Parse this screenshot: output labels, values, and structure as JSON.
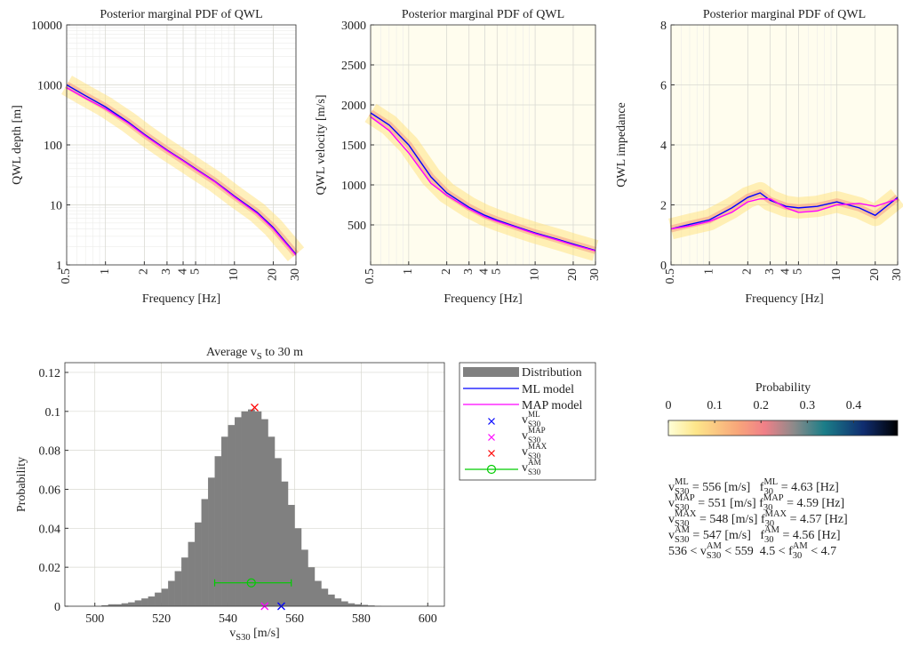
{
  "chart_data": [
    {
      "type": "line",
      "title": "Posterior marginal PDF of QWL",
      "xlabel": "Frequency [Hz]",
      "ylabel": "QWL depth [m]",
      "x": [
        0.5,
        0.7,
        1,
        1.5,
        2,
        3,
        4,
        5,
        7,
        10,
        15,
        20,
        30
      ],
      "series": [
        {
          "name": "ML model",
          "color": "#0000ff",
          "values": [
            1000,
            660,
            430,
            240,
            150,
            82,
            55,
            40,
            25,
            14,
            7.5,
            4.2,
            1.5
          ]
        },
        {
          "name": "MAP model",
          "color": "#ff00ff",
          "values": [
            900,
            600,
            400,
            230,
            145,
            80,
            54,
            39,
            24.5,
            13.5,
            7.2,
            4,
            1.45
          ]
        }
      ],
      "xlim": [
        0.5,
        30
      ],
      "xticks": [
        0.5,
        1,
        2,
        3,
        4,
        5,
        10,
        20,
        30
      ],
      "xscale": "log",
      "xtick_rotation": 90,
      "ylim": [
        1,
        10000
      ],
      "yticks": [
        1,
        10,
        100,
        1000,
        10000
      ],
      "yscale": "log",
      "grid": true,
      "background": "#ffffff"
    },
    {
      "type": "line",
      "title": "Posterior marginal PDF of QWL",
      "xlabel": "Frequency [Hz]",
      "ylabel": "QWL velocity [m/s]",
      "x": [
        0.5,
        0.7,
        1,
        1.5,
        2,
        3,
        4,
        5,
        7,
        10,
        15,
        20,
        30
      ],
      "series": [
        {
          "name": "ML model",
          "color": "#0000ff",
          "values": [
            1900,
            1750,
            1500,
            1100,
            900,
            720,
            620,
            560,
            480,
            400,
            320,
            260,
            180
          ]
        },
        {
          "name": "MAP model",
          "color": "#ff00ff",
          "values": [
            1850,
            1680,
            1400,
            1020,
            870,
            700,
            600,
            545,
            470,
            390,
            310,
            250,
            175
          ]
        }
      ],
      "xlim": [
        0.5,
        30
      ],
      "xticks": [
        0.5,
        1,
        2,
        3,
        4,
        5,
        10,
        20,
        30
      ],
      "xscale": "log",
      "xtick_rotation": 90,
      "ylim": [
        0,
        3000
      ],
      "yticks": [
        500,
        1000,
        1500,
        2000,
        2500,
        3000
      ],
      "yscale": "linear",
      "grid": true,
      "background": "#fffdee"
    },
    {
      "type": "line",
      "title": "Posterior marginal PDF of QWL",
      "xlabel": "Frequency [Hz]",
      "ylabel": "QWL impedance",
      "x": [
        0.5,
        0.7,
        1,
        1.5,
        2,
        2.5,
        3,
        4,
        5,
        7,
        10,
        15,
        20,
        30
      ],
      "series": [
        {
          "name": "ML model",
          "color": "#0000ff",
          "values": [
            1.2,
            1.35,
            1.5,
            1.9,
            2.25,
            2.4,
            2.15,
            1.95,
            1.9,
            1.95,
            2.1,
            1.9,
            1.65,
            2.25
          ]
        },
        {
          "name": "MAP model",
          "color": "#ff00ff",
          "values": [
            1.2,
            1.3,
            1.45,
            1.75,
            2.1,
            2.2,
            2.2,
            1.9,
            1.75,
            1.8,
            2.0,
            2.05,
            1.95,
            2.2
          ]
        }
      ],
      "xlim": [
        0.5,
        30
      ],
      "xticks": [
        0.5,
        1,
        2,
        3,
        4,
        5,
        10,
        20,
        30
      ],
      "xscale": "log",
      "xtick_rotation": 90,
      "ylim": [
        0,
        8
      ],
      "yticks": [
        0,
        2,
        4,
        6,
        8
      ],
      "yscale": "linear",
      "grid": true,
      "background": "#fffdee"
    },
    {
      "type": "histogram",
      "title": [
        "Average v",
        {
          "sub": "S"
        },
        " to 30 m"
      ],
      "xlabel": [
        "v",
        {
          "sub": "S30"
        },
        " [m/s]"
      ],
      "ylabel": "Probability",
      "name": "Distribution",
      "color": "#808080",
      "bins": [
        502,
        504,
        506,
        508,
        510,
        512,
        514,
        516,
        518,
        520,
        522,
        524,
        526,
        528,
        530,
        532,
        534,
        536,
        538,
        540,
        542,
        544,
        546,
        548,
        550,
        552,
        554,
        556,
        558,
        560,
        562,
        564,
        566,
        568,
        570,
        572,
        574,
        576,
        578,
        580,
        582,
        584,
        586
      ],
      "values": [
        0.0005,
        0.001,
        0.001,
        0.0015,
        0.002,
        0.003,
        0.004,
        0.005,
        0.007,
        0.009,
        0.013,
        0.018,
        0.025,
        0.033,
        0.043,
        0.055,
        0.066,
        0.077,
        0.087,
        0.093,
        0.097,
        0.1,
        0.101,
        0.1,
        0.096,
        0.087,
        0.076,
        0.064,
        0.052,
        0.04,
        0.029,
        0.02,
        0.013,
        0.009,
        0.006,
        0.004,
        0.0025,
        0.0015,
        0.001,
        0.0007,
        0.0004,
        0.0002
      ],
      "markers": [
        {
          "name": [
            "v",
            {
              "sub": "S30",
              "sup": "ML"
            }
          ],
          "color": "#0000ff",
          "marker": "x",
          "x": 556,
          "y": 0
        },
        {
          "name": [
            "v",
            {
              "sub": "S30",
              "sup": "MAP"
            }
          ],
          "color": "#ff00ff",
          "marker": "x",
          "x": 551,
          "y": 0
        },
        {
          "name": [
            "v",
            {
              "sub": "S30",
              "sup": "MAX"
            }
          ],
          "color": "#ff0000",
          "marker": "x",
          "x": 548,
          "y": 0.102
        },
        {
          "name": [
            "v",
            {
              "sub": "S30",
              "sup": "AM"
            }
          ],
          "color": "#00cc00",
          "marker": "o",
          "x": 547,
          "y": 0.012,
          "xerr": [
            536,
            559
          ]
        }
      ],
      "xlim": [
        491,
        605
      ],
      "xticks": [
        500,
        520,
        540,
        560,
        580,
        600
      ],
      "ylim": [
        0,
        0.125
      ],
      "yticks": [
        0,
        0.02,
        0.04,
        0.06,
        0.08,
        0.1,
        0.12
      ],
      "grid": true,
      "background": "#ffffff"
    }
  ],
  "colorbar": {
    "label": "Probability",
    "lim": [
      0,
      0.495
    ],
    "ticks": [
      0,
      0.1,
      0.2,
      0.3,
      0.4
    ]
  },
  "summary": [
    [
      "v",
      {
        "sub": "S30",
        "sup": "ML"
      },
      " = 556 [m/s]   f",
      {
        "sub": "30",
        "sup": "ML"
      },
      " = 4.63 [Hz]"
    ],
    [
      "v",
      {
        "sub": "S30",
        "sup": "MAP"
      },
      " = 551 [m/s] f",
      {
        "sub": "30",
        "sup": "MAP"
      },
      " = 4.59 [Hz]"
    ],
    [
      "v",
      {
        "sub": "S30",
        "sup": "MAX"
      },
      " = 548 [m/s] f",
      {
        "sub": "30",
        "sup": "MAX"
      },
      " = 4.57 [Hz]"
    ],
    [
      "v",
      {
        "sub": "S30",
        "sup": "AM"
      },
      " = 547 [m/s]   f",
      {
        "sub": "30",
        "sup": "AM"
      },
      " = 4.56 [Hz]"
    ],
    [
      "536 < v",
      {
        "sub": "S30",
        "sup": "AM"
      },
      " < 559  4.5 < f",
      {
        "sub": "30",
        "sup": "AM"
      },
      " < 4.7"
    ]
  ]
}
